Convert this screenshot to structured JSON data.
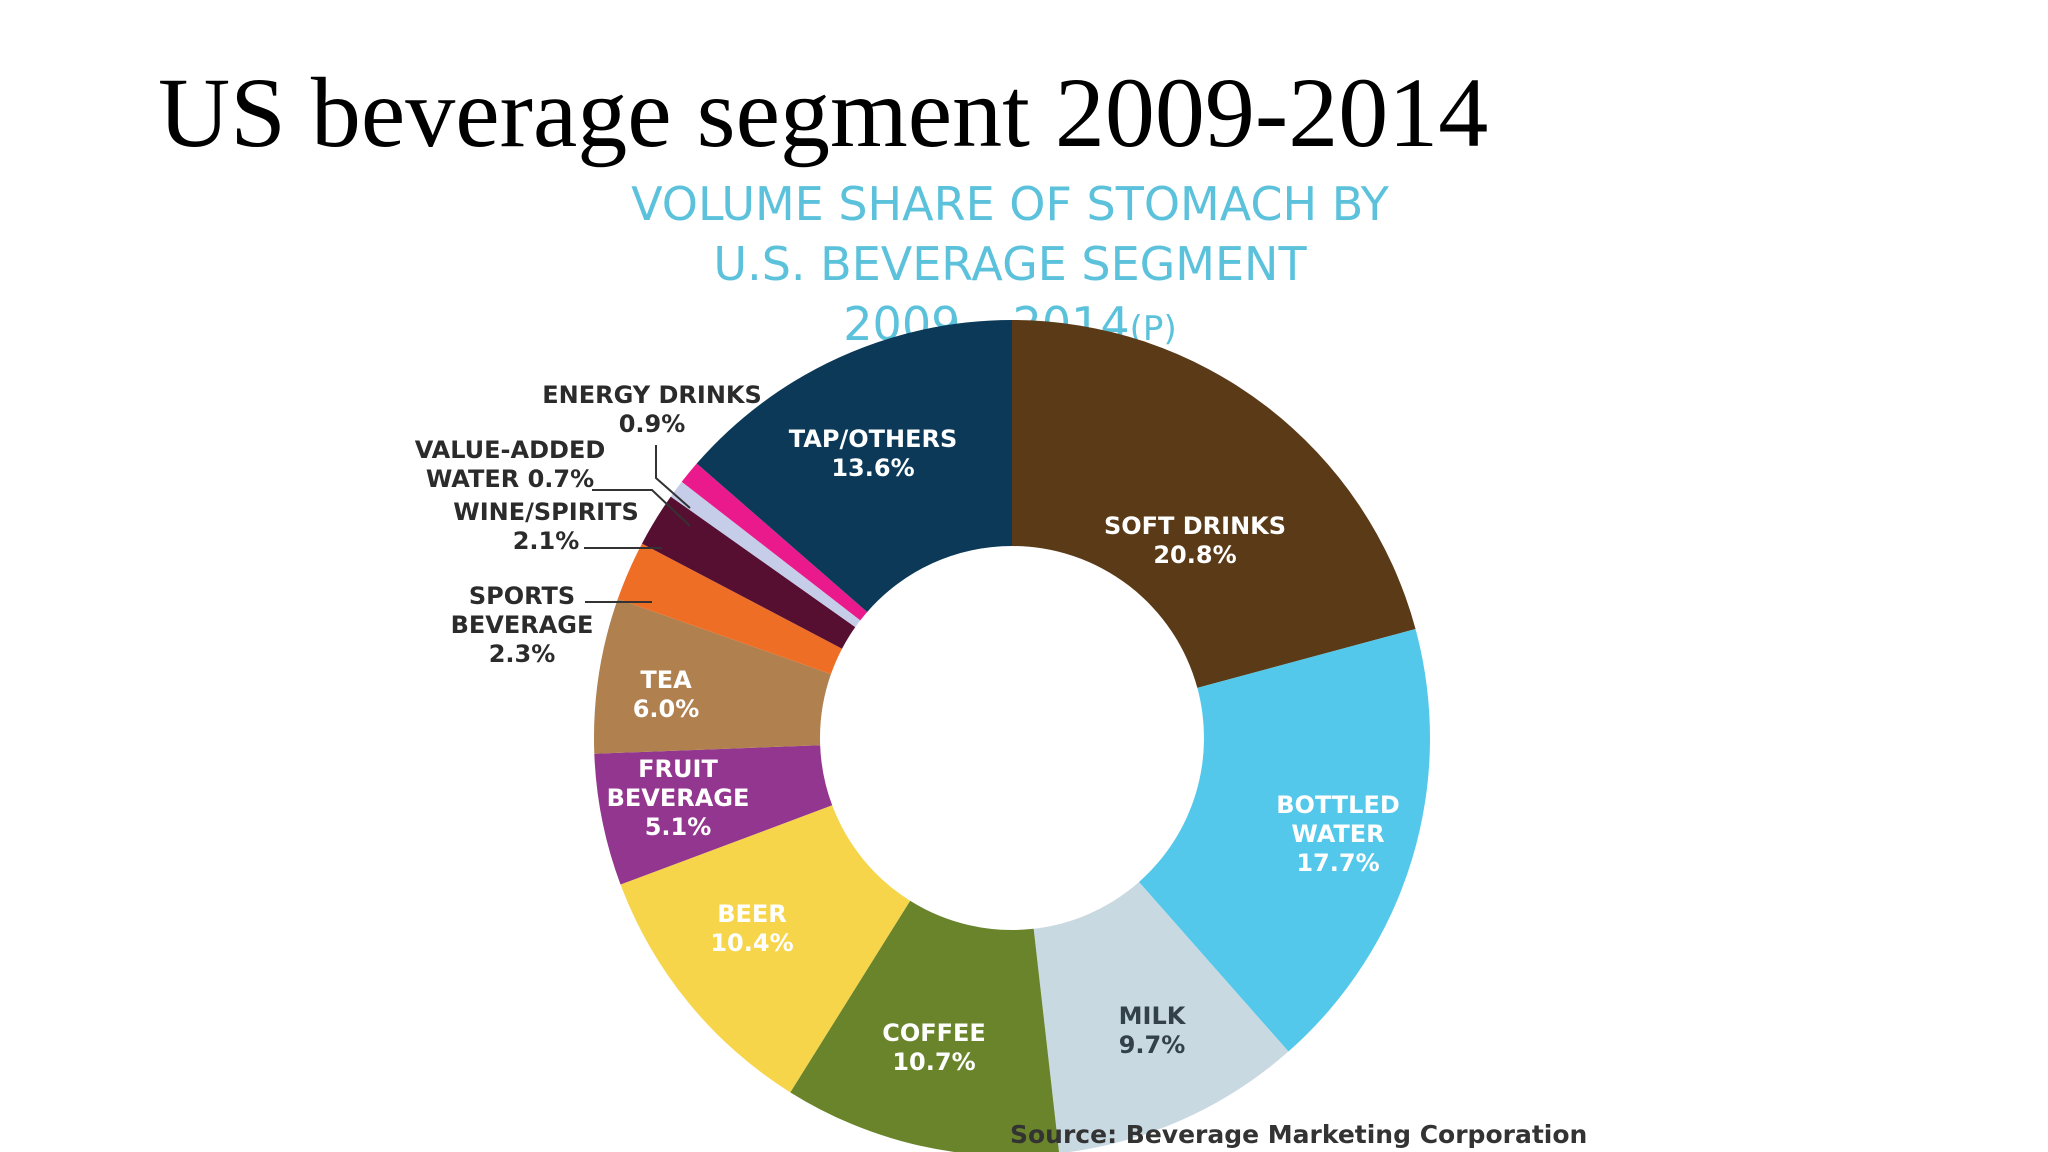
{
  "slide": {
    "title": "US beverage segment 2009-2014"
  },
  "chart_data": {
    "type": "pie",
    "donut": true,
    "title_lines": [
      "VOLUME SHARE OF STOMACH BY",
      "U.S. BEVERAGE SEGMENT"
    ],
    "title_period": "2009 – 2014",
    "title_suffix": "(P)",
    "source": "Source: Beverage Marketing Corporation",
    "unit": "%",
    "slices": [
      {
        "name": "SOFT DRINKS",
        "value": 20.8,
        "label_lines": [
          "SOFT DRINKS",
          "20.8%"
        ],
        "color": "#5a3a17"
      },
      {
        "name": "BOTTLED WATER",
        "value": 17.7,
        "label_lines": [
          "BOTTLED",
          "WATER",
          "17.7%"
        ],
        "color": "#54c8ea"
      },
      {
        "name": "MILK",
        "value": 9.7,
        "label_lines": [
          "MILK",
          "9.7%"
        ],
        "color": "#c9d9e2"
      },
      {
        "name": "COFFEE",
        "value": 10.7,
        "label_lines": [
          "COFFEE",
          "10.7%"
        ],
        "color": "#6a842b"
      },
      {
        "name": "BEER",
        "value": 10.4,
        "label_lines": [
          "BEER",
          "10.4%"
        ],
        "color": "#f6d54b"
      },
      {
        "name": "FRUIT BEVERAGE",
        "value": 5.1,
        "label_lines": [
          "FRUIT",
          "BEVERAGE",
          "5.1%"
        ],
        "color": "#93368f"
      },
      {
        "name": "TEA",
        "value": 6.0,
        "label_lines": [
          "TEA",
          "6.0%"
        ],
        "color": "#b0804f"
      },
      {
        "name": "SPORTS BEVERAGE",
        "value": 2.3,
        "label_lines": [
          "SPORTS",
          "BEVERAGE",
          "2.3%"
        ],
        "color": "#ef6e25"
      },
      {
        "name": "WINE/SPIRITS",
        "value": 2.1,
        "label_lines": [
          "WINE/SPIRITS",
          "2.1%"
        ],
        "color": "#560e31"
      },
      {
        "name": "VALUE-ADDED WATER",
        "value": 0.7,
        "label_lines": [
          "VALUE-ADDED",
          "WATER 0.7%"
        ],
        "color": "#c6cde9"
      },
      {
        "name": "ENERGY DRINKS",
        "value": 0.9,
        "label_lines": [
          "ENERGY DRINKS",
          "0.9%"
        ],
        "color": "#ea1a8c"
      },
      {
        "name": "TAP/OTHERS",
        "value": 13.6,
        "label_lines": [
          "TAP/OTHERS",
          "13.6%"
        ],
        "color": "#0b3957"
      }
    ]
  }
}
